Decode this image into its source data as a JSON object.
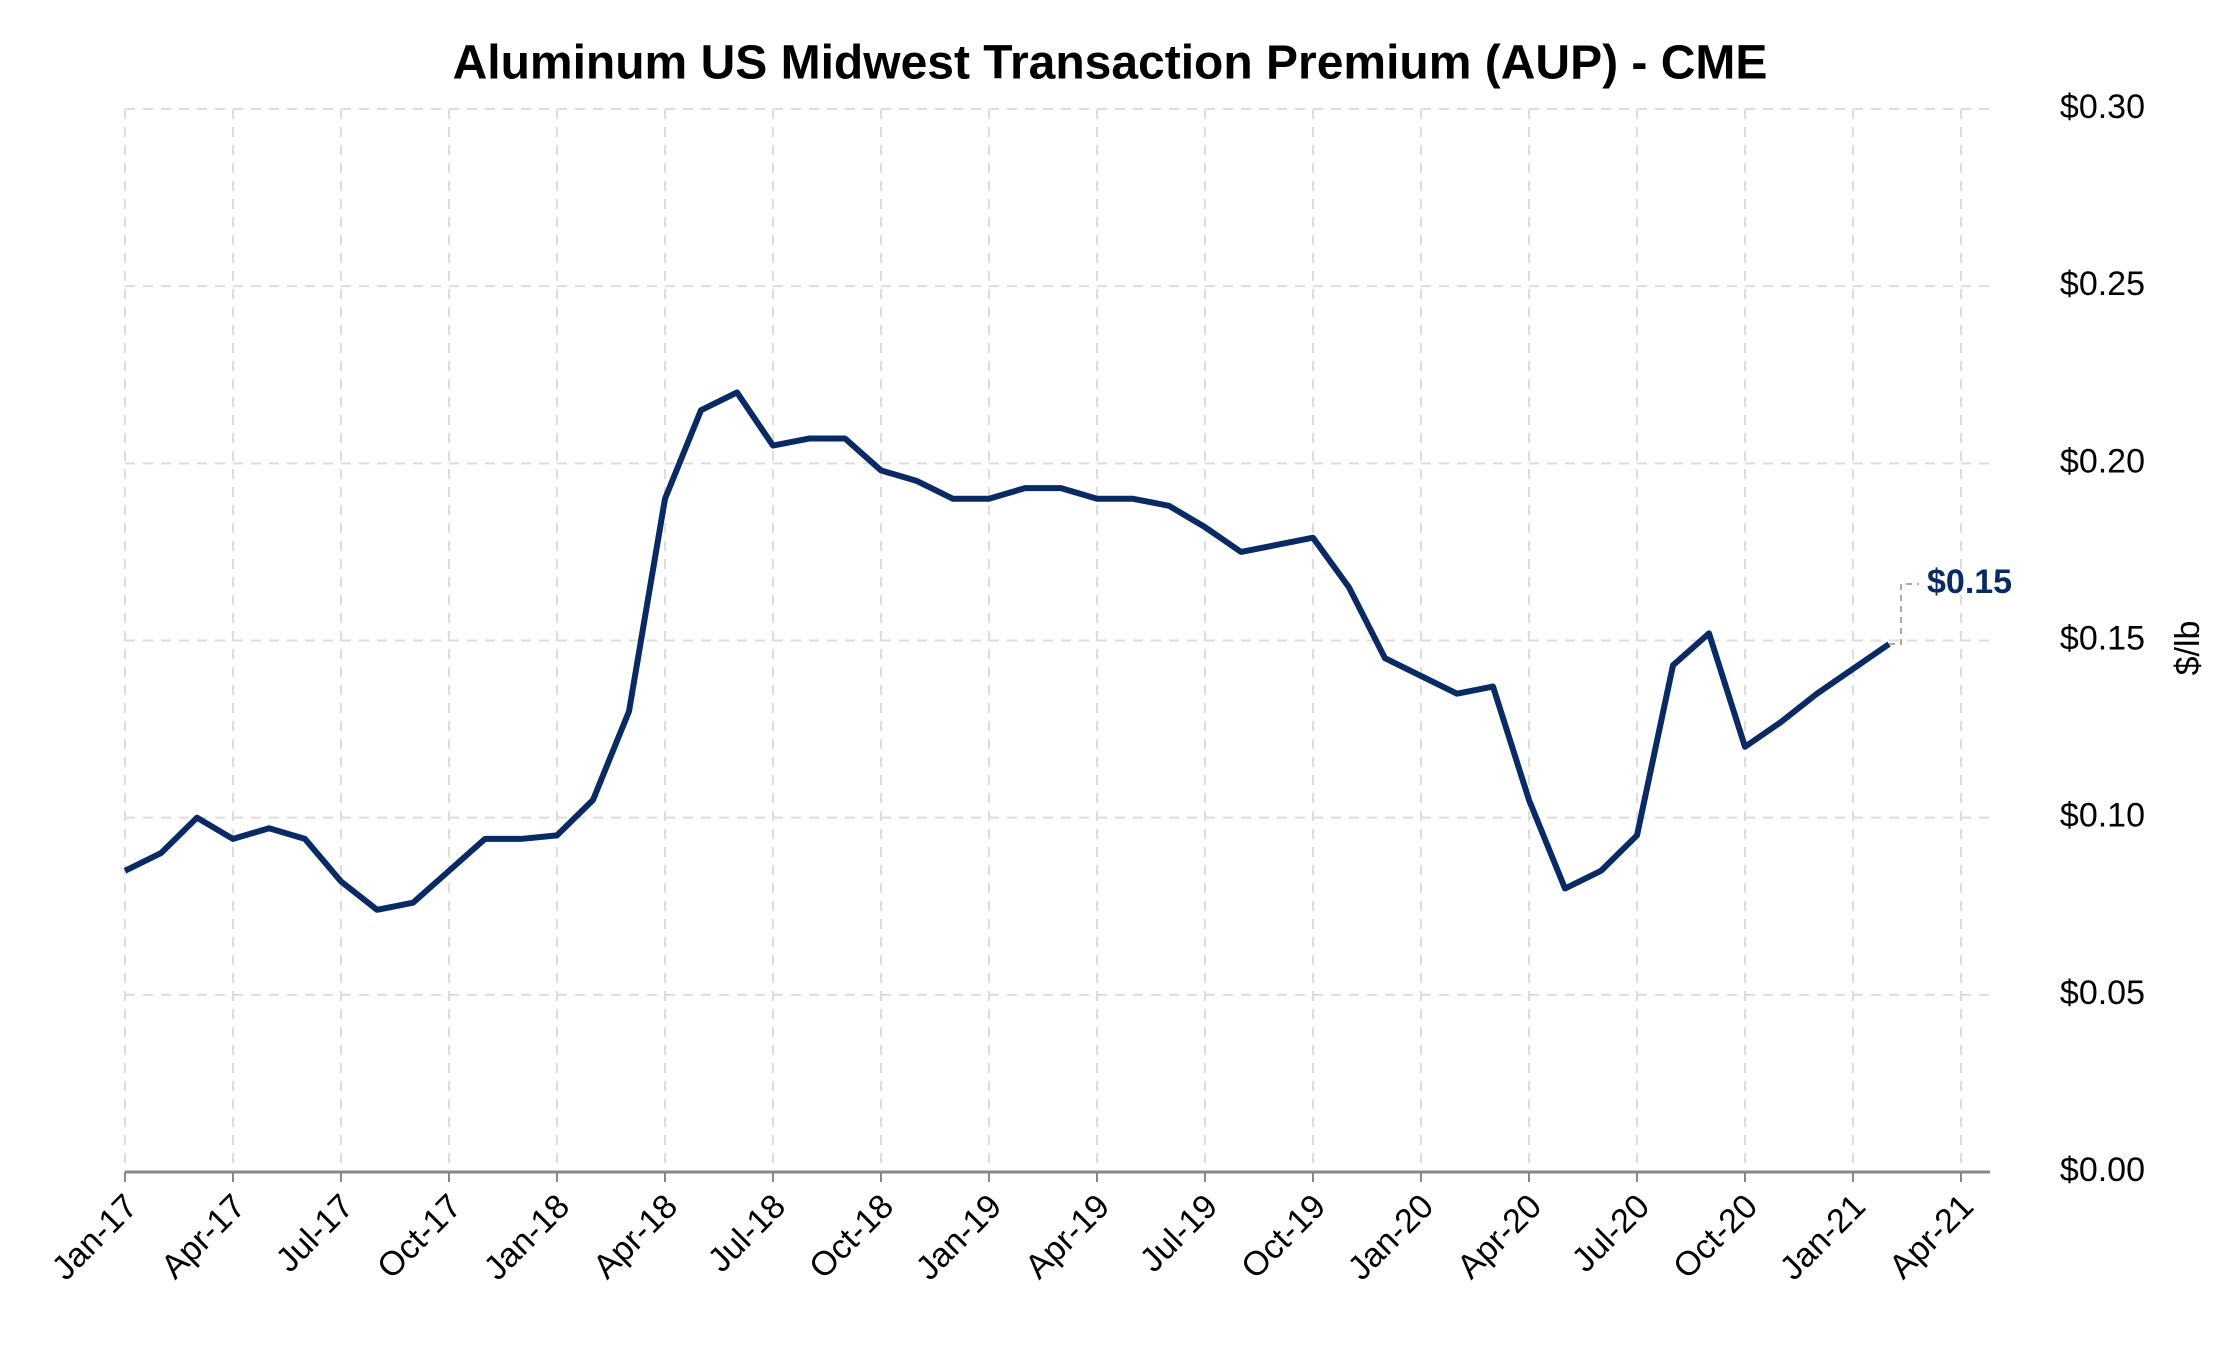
{
  "chart_data": {
    "type": "line",
    "title": "Aluminum US Midwest Transaction Premium (AUP) - CME",
    "y_axis_label": "$/lb",
    "x": [
      "2017-01",
      "2017-02",
      "2017-03",
      "2017-04",
      "2017-05",
      "2017-06",
      "2017-07",
      "2017-08",
      "2017-09",
      "2017-10",
      "2017-11",
      "2017-12",
      "2018-01",
      "2018-02",
      "2018-03",
      "2018-04",
      "2018-05",
      "2018-06",
      "2018-07",
      "2018-08",
      "2018-09",
      "2018-10",
      "2018-11",
      "2018-12",
      "2019-01",
      "2019-02",
      "2019-03",
      "2019-04",
      "2019-05",
      "2019-06",
      "2019-07",
      "2019-08",
      "2019-09",
      "2019-10",
      "2019-11",
      "2019-12",
      "2020-01",
      "2020-02",
      "2020-03",
      "2020-04",
      "2020-05",
      "2020-06",
      "2020-07",
      "2020-08",
      "2020-09",
      "2020-10",
      "2020-11",
      "2020-12",
      "2021-01",
      "2021-02"
    ],
    "series": [
      {
        "name": "AUP",
        "color": "#0a2a66",
        "values": [
          0.085,
          0.09,
          0.1,
          0.094,
          0.097,
          0.094,
          0.082,
          0.074,
          0.076,
          0.085,
          0.094,
          0.094,
          0.095,
          0.105,
          0.13,
          0.19,
          0.215,
          0.22,
          0.205,
          0.207,
          0.207,
          0.198,
          0.195,
          0.19,
          0.19,
          0.193,
          0.193,
          0.19,
          0.19,
          0.188,
          0.182,
          0.175,
          0.177,
          0.179,
          0.165,
          0.145,
          0.14,
          0.135,
          0.137,
          0.105,
          0.08,
          0.085,
          0.095,
          0.143,
          0.152,
          0.12,
          0.127,
          0.135,
          0.142,
          0.149
        ]
      }
    ],
    "last_value_label": "$0.15",
    "xlim": [
      "2017-01",
      "2021-04"
    ],
    "xticks": [
      {
        "value": "2017-01",
        "label": "Jan-17"
      },
      {
        "value": "2017-04",
        "label": "Apr-17"
      },
      {
        "value": "2017-07",
        "label": "Jul-17"
      },
      {
        "value": "2017-10",
        "label": "Oct-17"
      },
      {
        "value": "2018-01",
        "label": "Jan-18"
      },
      {
        "value": "2018-04",
        "label": "Apr-18"
      },
      {
        "value": "2018-07",
        "label": "Jul-18"
      },
      {
        "value": "2018-10",
        "label": "Oct-18"
      },
      {
        "value": "2019-01",
        "label": "Jan-19"
      },
      {
        "value": "2019-04",
        "label": "Apr-19"
      },
      {
        "value": "2019-07",
        "label": "Jul-19"
      },
      {
        "value": "2019-10",
        "label": "Oct-19"
      },
      {
        "value": "2020-01",
        "label": "Jan-20"
      },
      {
        "value": "2020-04",
        "label": "Apr-20"
      },
      {
        "value": "2020-07",
        "label": "Jul-20"
      },
      {
        "value": "2020-10",
        "label": "Oct-20"
      },
      {
        "value": "2021-01",
        "label": "Jan-21"
      },
      {
        "value": "2021-04",
        "label": "Apr-21"
      }
    ],
    "ylim": [
      0,
      0.3
    ],
    "yticks": [
      {
        "value": 0,
        "label": "$0.00"
      },
      {
        "value": 0.05,
        "label": "$0.05"
      },
      {
        "value": 0.1,
        "label": "$0.10"
      },
      {
        "value": 0.15,
        "label": "$0.15"
      },
      {
        "value": 0.2,
        "label": "$0.20"
      },
      {
        "value": 0.25,
        "label": "$0.25"
      },
      {
        "value": 0.3,
        "label": "$0.30"
      }
    ],
    "grid": true
  }
}
